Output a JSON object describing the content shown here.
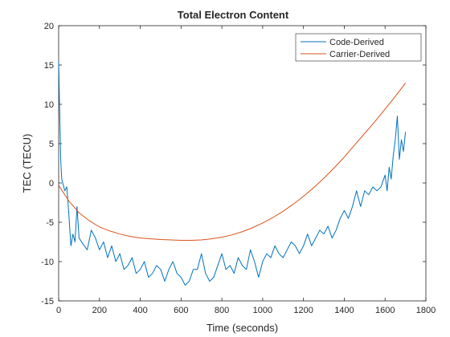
{
  "chart_data": {
    "type": "line",
    "title": "Total Electron Content",
    "xlabel": "Time (seconds)",
    "ylabel": "TEC (TECU)",
    "xlim": [
      0,
      1800
    ],
    "ylim": [
      -15,
      20
    ],
    "x_ticks": [
      0,
      200,
      400,
      600,
      800,
      1000,
      1200,
      1400,
      1600,
      1800
    ],
    "y_ticks": [
      -15,
      -10,
      -5,
      0,
      5,
      10,
      15,
      20
    ],
    "grid": false,
    "legend_position": "top-right",
    "series": [
      {
        "name": "Code-Derived",
        "color": "#0072BD",
        "x": [
          0,
          5,
          10,
          15,
          20,
          30,
          40,
          50,
          60,
          70,
          80,
          90,
          100,
          120,
          140,
          160,
          180,
          200,
          220,
          240,
          260,
          280,
          300,
          320,
          340,
          360,
          380,
          400,
          420,
          440,
          460,
          480,
          500,
          520,
          540,
          560,
          580,
          600,
          620,
          640,
          660,
          680,
          700,
          720,
          740,
          760,
          780,
          800,
          820,
          840,
          860,
          880,
          900,
          920,
          940,
          960,
          980,
          1000,
          1020,
          1040,
          1060,
          1080,
          1100,
          1120,
          1140,
          1160,
          1180,
          1200,
          1220,
          1240,
          1260,
          1280,
          1300,
          1320,
          1340,
          1360,
          1380,
          1400,
          1420,
          1440,
          1460,
          1480,
          1500,
          1520,
          1540,
          1560,
          1580,
          1600,
          1610,
          1620,
          1630,
          1640,
          1650,
          1660,
          1670,
          1680,
          1690,
          1700
        ],
        "y": [
          15.5,
          9.0,
          3.0,
          0.5,
          0.0,
          -1.0,
          -0.5,
          -4.0,
          -8.0,
          -6.5,
          -7.5,
          -3.0,
          -7.0,
          -7.8,
          -8.5,
          -6.0,
          -7.0,
          -8.5,
          -7.5,
          -9.5,
          -8.0,
          -10.0,
          -9.0,
          -11.0,
          -10.5,
          -9.5,
          -11.5,
          -11.0,
          -10.0,
          -12.0,
          -11.5,
          -10.5,
          -11.0,
          -12.5,
          -11.0,
          -10.0,
          -11.5,
          -12.0,
          -13.0,
          -12.5,
          -11.0,
          -11.0,
          -9.0,
          -11.5,
          -12.5,
          -12.0,
          -10.5,
          -9.0,
          -11.0,
          -10.5,
          -11.5,
          -9.5,
          -10.5,
          -11.0,
          -8.5,
          -10.0,
          -12.0,
          -10.0,
          -9.0,
          -9.5,
          -8.0,
          -9.0,
          -9.5,
          -8.5,
          -7.5,
          -8.0,
          -9.0,
          -8.0,
          -6.5,
          -8.0,
          -7.0,
          -6.0,
          -6.5,
          -5.5,
          -7.0,
          -6.0,
          -4.5,
          -3.5,
          -4.5,
          -3.0,
          -1.0,
          -3.0,
          -1.0,
          -1.5,
          -0.5,
          -1.0,
          -0.5,
          1.0,
          -1.0,
          2.0,
          0.5,
          3.5,
          5.5,
          8.5,
          3.0,
          5.5,
          4.0,
          6.5
        ]
      },
      {
        "name": "Carrier-Derived",
        "color": "#D95319",
        "x": [
          0,
          50,
          100,
          150,
          200,
          250,
          300,
          350,
          400,
          450,
          500,
          550,
          600,
          650,
          700,
          750,
          800,
          850,
          900,
          950,
          1000,
          1050,
          1100,
          1150,
          1200,
          1250,
          1300,
          1350,
          1400,
          1450,
          1500,
          1550,
          1600,
          1650,
          1700
        ],
        "y": [
          -0.3,
          -2.3,
          -3.8,
          -4.8,
          -5.6,
          -6.1,
          -6.5,
          -6.8,
          -7.0,
          -7.1,
          -7.2,
          -7.25,
          -7.3,
          -7.3,
          -7.25,
          -7.1,
          -6.9,
          -6.6,
          -6.2,
          -5.7,
          -5.1,
          -4.4,
          -3.6,
          -2.7,
          -1.7,
          -0.6,
          0.6,
          1.9,
          3.3,
          4.8,
          6.3,
          7.8,
          9.4,
          11.0,
          12.7
        ]
      }
    ]
  }
}
